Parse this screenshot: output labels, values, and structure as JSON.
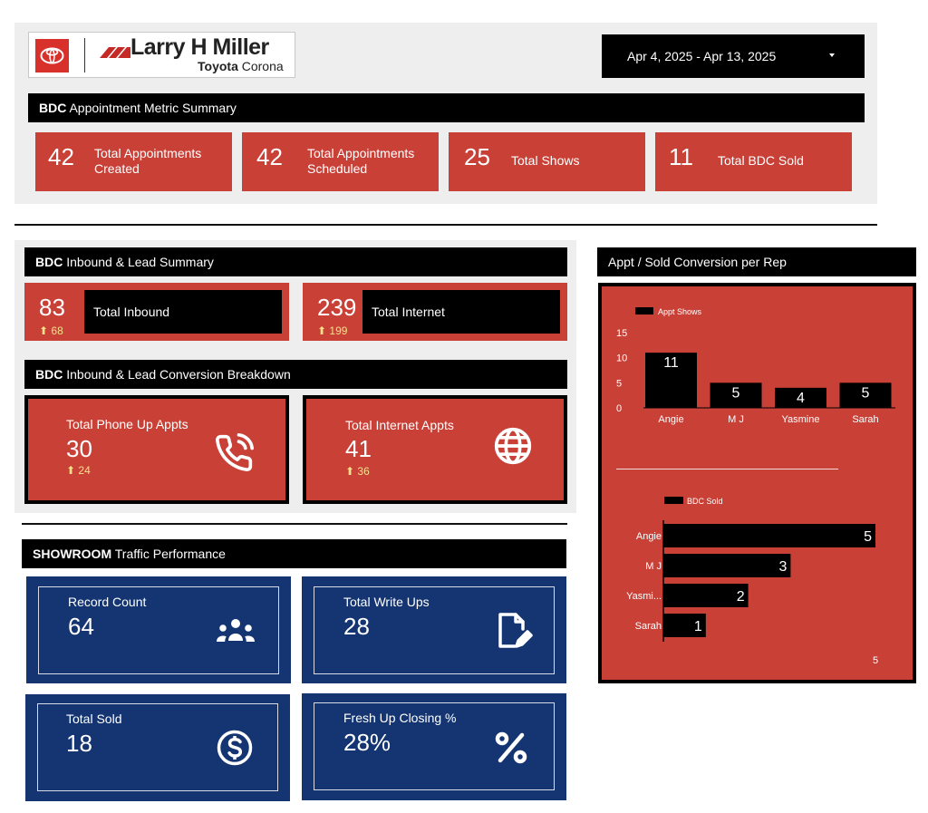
{
  "header": {
    "brand_main": "Larry H Miller",
    "brand_sub_bold": "Toyota",
    "brand_sub": "Corona",
    "date_range": "Apr 4, 2025 - Apr 13, 2025"
  },
  "appointment_summary": {
    "title_bold": "BDC",
    "title": "Appointment Metric Summary",
    "cards": [
      {
        "value": "42",
        "label_line1": "Total Appointments",
        "label_line2": "Created"
      },
      {
        "value": "42",
        "label_line1": "Total Appointments",
        "label_line2": "Scheduled"
      },
      {
        "value": "25",
        "label_line1": "Total Shows",
        "label_line2": ""
      },
      {
        "value": "11",
        "label_line1": "Total BDC Sold",
        "label_line2": ""
      }
    ]
  },
  "inbound_summary": {
    "title_bold": "BDC",
    "title": "Inbound & Lead Summary",
    "cards": [
      {
        "value": "83",
        "delta": "68",
        "label": "Total Inbound"
      },
      {
        "value": "239",
        "delta": "199",
        "label": "Total Internet"
      }
    ]
  },
  "conversion_breakdown": {
    "title_bold": "BDC",
    "title": "Inbound & Lead Conversion Breakdown",
    "cards": [
      {
        "label": "Total Phone Up Appts",
        "value": "30",
        "delta": "24",
        "icon": "phone-icon"
      },
      {
        "label": "Total Internet Appts",
        "value": "41",
        "delta": "36",
        "icon": "globe-icon"
      }
    ]
  },
  "showroom": {
    "title_bold": "SHOWROOM",
    "title": "Traffic Performance",
    "cards": [
      {
        "label": "Record Count",
        "value": "64",
        "icon": "people-icon"
      },
      {
        "label": "Total Write Ups",
        "value": "28",
        "icon": "edit-document-icon"
      },
      {
        "label": "Total Sold",
        "value": "18",
        "icon": "dollar-icon"
      },
      {
        "label": "Fresh Up Closing %",
        "value": "28%",
        "icon": "percent-icon"
      }
    ]
  },
  "conversion_panel": {
    "title": "Appt / Sold Conversion per Rep"
  },
  "chart_data": [
    {
      "type": "bar",
      "title": "",
      "series": [
        {
          "name": "Appt Shows",
          "values": [
            11,
            5,
            4,
            5
          ]
        }
      ],
      "categories": [
        "Angie",
        "M J",
        "Yasmine",
        "Sarah"
      ],
      "ylim": [
        0,
        15
      ],
      "yticks": [
        "0",
        "5",
        "10",
        "15"
      ],
      "legend": "top-left",
      "grid": false
    },
    {
      "type": "bar",
      "orientation": "horizontal",
      "title": "",
      "series": [
        {
          "name": "BDC Sold",
          "values": [
            5,
            3,
            2,
            1
          ]
        }
      ],
      "categories": [
        "Angie",
        "M J",
        "Yasmi...",
        "Sarah"
      ],
      "xmax": 5,
      "x_tick_label": "5",
      "legend": "top-left",
      "grid": false
    }
  ]
}
